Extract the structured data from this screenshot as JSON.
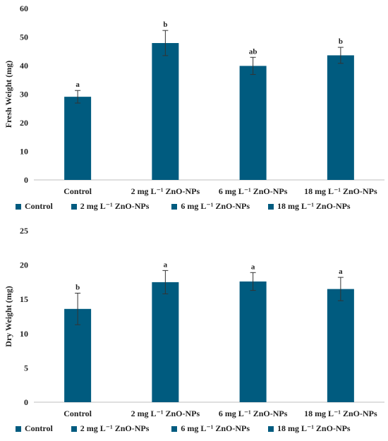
{
  "colors": {
    "bar": "#005b7f",
    "axis": "#bfbfbf",
    "text": "#222222"
  },
  "chart_data": [
    {
      "type": "bar",
      "ylabel": "Fresh Weight (mg)",
      "xlabel": "",
      "ylim": [
        0,
        60
      ],
      "ticks": [
        "0",
        "10",
        "20",
        "30",
        "40",
        "50",
        "60"
      ],
      "categories": [
        "Control",
        "2 mg L⁻¹ ZnO-NPs",
        "6 mg L⁻¹ ZnO-NPs",
        "18 mg L⁻¹ ZnO-NPs"
      ],
      "values": [
        29.1,
        47.9,
        39.9,
        43.6
      ],
      "errors": [
        2.2,
        4.4,
        3.0,
        2.8
      ],
      "significance": [
        "a",
        "b",
        "ab",
        "b"
      ],
      "legend": [
        "Control",
        "2 mg L⁻¹ ZnO-NPs",
        "6 mg L⁻¹ ZnO-NPs",
        "18 mg L⁻¹ ZnO-NPs"
      ],
      "legend_position": "bottom",
      "grid": false
    },
    {
      "type": "bar",
      "ylabel": "Dry Weight (mg)",
      "xlabel": "",
      "ylim": [
        0,
        25
      ],
      "ticks": [
        "0",
        "5",
        "10",
        "15",
        "20",
        "25"
      ],
      "categories": [
        "Control",
        "2 mg L⁻¹ ZnO-NPs",
        "6 mg L⁻¹ ZnO-NPs",
        "18 mg L⁻¹ ZnO-NPs"
      ],
      "values": [
        13.6,
        17.5,
        17.6,
        16.5
      ],
      "errors": [
        2.3,
        1.7,
        1.3,
        1.7
      ],
      "significance": [
        "b",
        "a",
        "a",
        "a"
      ],
      "legend": [
        "Control",
        "2 mg L⁻¹ ZnO-NPs",
        "6 mg L⁻¹ ZnO-NPs",
        "18 mg L⁻¹ ZnO-NPs"
      ],
      "legend_position": "bottom",
      "grid": false
    }
  ]
}
